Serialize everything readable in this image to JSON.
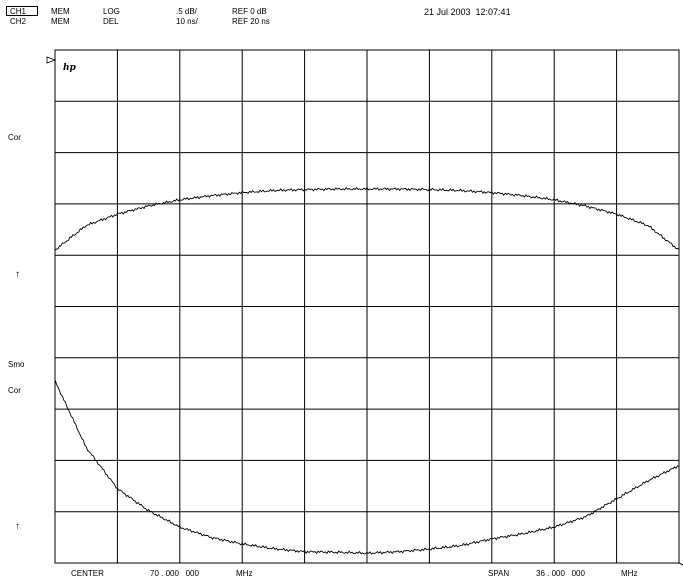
{
  "header": {
    "timestamp": "21 Jul 2003  12:07:41",
    "ch1": {
      "label": "CH1",
      "mem": "MEM",
      "format": "LOG",
      "scale": ".5 dB/",
      "ref": "REF 0 dB"
    },
    "ch2": {
      "label": "CH2",
      "mem": "MEM",
      "format": "DEL",
      "scale": "10 ns/",
      "ref": "REF 20 ns"
    }
  },
  "side": {
    "ch1_cor": "Cor",
    "ch1_ref_marker": "↑",
    "ch2_smo": "Smo",
    "ch2_cor": "Cor",
    "ch2_ref_marker": "↑"
  },
  "logo": "hp",
  "footer": {
    "center_label": "CENTER",
    "center_value": "70 . 000   000",
    "center_unit": "MHz",
    "span_label": "SPAN",
    "span_value": "36 . 000   000",
    "span_unit": "MHz"
  },
  "chart_data": {
    "type": "line",
    "grid": true,
    "x_divisions": 10,
    "y_divisions": 10,
    "series": [
      {
        "channel": "CH1",
        "x": [
          0,
          0.5,
          1,
          1.5,
          2,
          2.5,
          3,
          3.5,
          4,
          4.5,
          5,
          5.5,
          6,
          6.5,
          7,
          7.5,
          8,
          8.5,
          9,
          9.5,
          10
        ],
        "y_div": [
          6.1,
          6.58,
          6.8,
          6.96,
          7.08,
          7.16,
          7.22,
          7.26,
          7.28,
          7.29,
          7.29,
          7.29,
          7.28,
          7.26,
          7.22,
          7.16,
          7.08,
          6.96,
          6.8,
          6.58,
          6.1
        ]
      },
      {
        "channel": "CH2",
        "x": [
          0,
          0.5,
          1,
          1.5,
          2,
          2.5,
          3,
          3.5,
          4,
          4.5,
          5,
          5.5,
          6,
          6.5,
          7,
          7.5,
          8,
          8.5,
          9,
          9.5,
          10
        ],
        "y_div": [
          3.55,
          2.25,
          1.45,
          1.02,
          0.7,
          0.5,
          0.37,
          0.28,
          0.22,
          0.21,
          0.19,
          0.22,
          0.27,
          0.34,
          0.47,
          0.57,
          0.7,
          0.9,
          1.25,
          1.6,
          1.9
        ]
      }
    ]
  }
}
